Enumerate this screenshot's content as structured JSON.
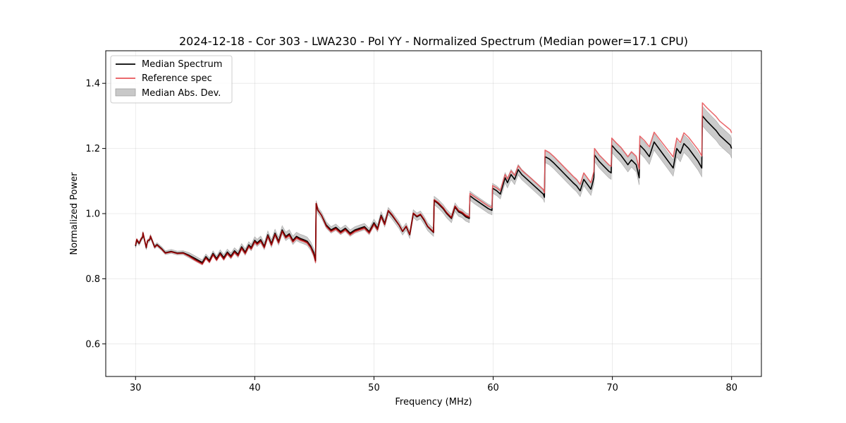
{
  "chart_data": {
    "type": "line",
    "title": "2024-12-18 - Cor 303 - LWA230 - Pol YY - Normalized Spectrum (Median power=17.1 CPU)",
    "xlabel": "Frequency (MHz)",
    "ylabel": "Normalized Power",
    "xlim": [
      27.5,
      82.5
    ],
    "ylim": [
      0.5,
      1.5
    ],
    "xticks": [
      30,
      40,
      50,
      60,
      70,
      80
    ],
    "yticks": [
      0.6,
      0.8,
      1.0,
      1.2,
      1.4
    ],
    "xtick_labels": [
      "30",
      "40",
      "50",
      "60",
      "70",
      "80"
    ],
    "ytick_labels": [
      "0.6",
      "0.8",
      "1.0",
      "1.2",
      "1.4"
    ],
    "grid": true,
    "legend_position": "top-left",
    "legend": [
      "Median Spectrum",
      "Reference spec",
      "Median Abs. Dev."
    ],
    "colors": {
      "median": "#000000",
      "reference": "#e8555a",
      "mad": "#c8c8c8",
      "overlap": "#8b0000"
    },
    "x": [
      30.0,
      30.1,
      30.3,
      30.45,
      30.6,
      30.62,
      30.9,
      31.0,
      31.2,
      31.25,
      31.6,
      31.8,
      32.2,
      32.5,
      33.0,
      33.5,
      34.0,
      34.5,
      35.0,
      35.3,
      35.6,
      35.9,
      36.2,
      36.5,
      36.8,
      37.1,
      37.4,
      37.7,
      38.0,
      38.3,
      38.6,
      38.9,
      39.2,
      39.5,
      39.7,
      40.0,
      40.2,
      40.5,
      40.8,
      41.1,
      41.4,
      41.7,
      42.0,
      42.3,
      42.6,
      42.9,
      43.2,
      43.5,
      43.8,
      44.1,
      44.4,
      44.7,
      44.95,
      45.1,
      45.15,
      45.3,
      45.6,
      46.0,
      46.4,
      46.8,
      47.2,
      47.6,
      48.0,
      48.4,
      48.8,
      49.2,
      49.6,
      50.0,
      50.3,
      50.6,
      50.9,
      51.2,
      51.5,
      51.8,
      52.1,
      52.4,
      52.7,
      53.0,
      53.3,
      53.6,
      53.9,
      54.2,
      54.5,
      55.0,
      55.05,
      55.4,
      55.8,
      56.1,
      56.5,
      56.8,
      57.1,
      57.4,
      57.7,
      58.0,
      58.05,
      58.4,
      58.8,
      59.2,
      59.6,
      59.9,
      59.95,
      60.3,
      60.6,
      61.0,
      61.2,
      61.5,
      61.8,
      62.1,
      62.4,
      62.7,
      63.0,
      63.3,
      63.6,
      63.9,
      64.2,
      64.3,
      64.35,
      64.7,
      65.1,
      65.5,
      65.9,
      66.3,
      66.7,
      67.0,
      67.3,
      67.6,
      67.9,
      68.2,
      68.45,
      68.5,
      68.9,
      69.3,
      69.7,
      69.9,
      69.95,
      70.3,
      70.7,
      71.1,
      71.3,
      71.6,
      72.0,
      72.25,
      72.3,
      72.7,
      73.1,
      73.5,
      73.9,
      74.3,
      74.7,
      75.1,
      75.4,
      75.7,
      76.0,
      76.4,
      76.8,
      77.2,
      77.5,
      77.55,
      77.9,
      78.3,
      78.7,
      79.0,
      79.3,
      79.6,
      79.9,
      80.0
    ],
    "median": [
      0.9,
      0.918,
      0.908,
      0.92,
      0.928,
      0.94,
      0.895,
      0.915,
      0.92,
      0.93,
      0.898,
      0.905,
      0.892,
      0.88,
      0.884,
      0.879,
      0.88,
      0.872,
      0.862,
      0.856,
      0.85,
      0.868,
      0.856,
      0.878,
      0.862,
      0.88,
      0.865,
      0.882,
      0.87,
      0.886,
      0.875,
      0.898,
      0.882,
      0.904,
      0.896,
      0.918,
      0.91,
      0.92,
      0.9,
      0.935,
      0.908,
      0.94,
      0.915,
      0.95,
      0.93,
      0.938,
      0.918,
      0.93,
      0.924,
      0.92,
      0.915,
      0.9,
      0.88,
      0.86,
      1.03,
      1.01,
      0.995,
      0.965,
      0.95,
      0.958,
      0.945,
      0.955,
      0.94,
      0.95,
      0.955,
      0.96,
      0.945,
      0.972,
      0.955,
      0.995,
      0.97,
      1.008,
      0.995,
      0.98,
      0.965,
      0.945,
      0.96,
      0.935,
      1.0,
      0.99,
      0.996,
      0.98,
      0.96,
      0.942,
      1.04,
      1.03,
      1.015,
      1.0,
      0.985,
      1.02,
      1.005,
      1.0,
      0.99,
      0.985,
      1.055,
      1.045,
      1.035,
      1.025,
      1.015,
      1.01,
      1.078,
      1.07,
      1.06,
      1.11,
      1.095,
      1.12,
      1.105,
      1.135,
      1.12,
      1.11,
      1.1,
      1.09,
      1.08,
      1.07,
      1.06,
      1.05,
      1.175,
      1.168,
      1.155,
      1.14,
      1.125,
      1.11,
      1.095,
      1.085,
      1.07,
      1.105,
      1.09,
      1.075,
      1.11,
      1.18,
      1.16,
      1.145,
      1.13,
      1.125,
      1.21,
      1.195,
      1.18,
      1.16,
      1.15,
      1.165,
      1.15,
      1.11,
      1.21,
      1.195,
      1.175,
      1.22,
      1.2,
      1.18,
      1.16,
      1.14,
      1.2,
      1.185,
      1.215,
      1.2,
      1.18,
      1.16,
      1.14,
      1.3,
      1.285,
      1.27,
      1.255,
      1.24,
      1.23,
      1.22,
      1.21,
      1.2
    ],
    "reference": [
      0.905,
      0.922,
      0.91,
      0.922,
      0.93,
      0.942,
      0.897,
      0.917,
      0.922,
      0.932,
      0.896,
      0.903,
      0.89,
      0.878,
      0.882,
      0.877,
      0.878,
      0.868,
      0.856,
      0.85,
      0.844,
      0.862,
      0.85,
      0.872,
      0.856,
      0.874,
      0.858,
      0.876,
      0.864,
      0.88,
      0.869,
      0.892,
      0.876,
      0.898,
      0.89,
      0.912,
      0.904,
      0.914,
      0.894,
      0.929,
      0.902,
      0.934,
      0.909,
      0.944,
      0.924,
      0.932,
      0.912,
      0.924,
      0.918,
      0.914,
      0.909,
      0.894,
      0.872,
      0.85,
      1.032,
      1.012,
      0.995,
      0.96,
      0.944,
      0.952,
      0.939,
      0.949,
      0.934,
      0.944,
      0.949,
      0.954,
      0.939,
      0.966,
      0.949,
      0.99,
      0.965,
      1.01,
      0.998,
      0.982,
      0.966,
      0.946,
      0.962,
      0.936,
      1.002,
      0.993,
      0.999,
      0.983,
      0.962,
      0.944,
      1.043,
      1.034,
      1.019,
      1.004,
      0.989,
      1.024,
      1.01,
      1.005,
      0.996,
      0.991,
      1.062,
      1.053,
      1.043,
      1.033,
      1.023,
      1.018,
      1.086,
      1.079,
      1.07,
      1.12,
      1.106,
      1.131,
      1.117,
      1.147,
      1.133,
      1.123,
      1.114,
      1.104,
      1.094,
      1.084,
      1.074,
      1.064,
      1.195,
      1.188,
      1.175,
      1.16,
      1.145,
      1.13,
      1.115,
      1.105,
      1.09,
      1.125,
      1.11,
      1.095,
      1.13,
      1.2,
      1.18,
      1.165,
      1.15,
      1.145,
      1.232,
      1.218,
      1.204,
      1.185,
      1.175,
      1.19,
      1.176,
      1.137,
      1.238,
      1.224,
      1.205,
      1.25,
      1.231,
      1.212,
      1.193,
      1.174,
      1.232,
      1.218,
      1.248,
      1.234,
      1.215,
      1.196,
      1.177,
      1.34,
      1.326,
      1.312,
      1.298,
      1.284,
      1.275,
      1.266,
      1.257,
      1.248
    ],
    "mad": [
      0.006,
      0.006,
      0.006,
      0.006,
      0.006,
      0.006,
      0.006,
      0.006,
      0.006,
      0.006,
      0.006,
      0.006,
      0.006,
      0.006,
      0.006,
      0.006,
      0.006,
      0.008,
      0.008,
      0.008,
      0.008,
      0.008,
      0.008,
      0.008,
      0.008,
      0.009,
      0.009,
      0.009,
      0.009,
      0.009,
      0.01,
      0.01,
      0.01,
      0.01,
      0.01,
      0.011,
      0.011,
      0.011,
      0.011,
      0.012,
      0.012,
      0.012,
      0.012,
      0.013,
      0.013,
      0.013,
      0.013,
      0.013,
      0.013,
      0.013,
      0.013,
      0.013,
      0.013,
      0.013,
      0.01,
      0.01,
      0.01,
      0.01,
      0.01,
      0.01,
      0.01,
      0.01,
      0.01,
      0.01,
      0.01,
      0.01,
      0.01,
      0.011,
      0.011,
      0.011,
      0.011,
      0.011,
      0.011,
      0.011,
      0.011,
      0.011,
      0.011,
      0.011,
      0.012,
      0.012,
      0.012,
      0.012,
      0.012,
      0.012,
      0.013,
      0.013,
      0.013,
      0.013,
      0.013,
      0.013,
      0.013,
      0.013,
      0.013,
      0.013,
      0.014,
      0.014,
      0.014,
      0.014,
      0.014,
      0.014,
      0.015,
      0.015,
      0.015,
      0.016,
      0.016,
      0.016,
      0.016,
      0.016,
      0.016,
      0.016,
      0.016,
      0.016,
      0.016,
      0.016,
      0.016,
      0.016,
      0.018,
      0.018,
      0.018,
      0.018,
      0.018,
      0.018,
      0.018,
      0.018,
      0.018,
      0.019,
      0.019,
      0.019,
      0.019,
      0.02,
      0.02,
      0.02,
      0.02,
      0.02,
      0.022,
      0.022,
      0.022,
      0.022,
      0.022,
      0.022,
      0.022,
      0.022,
      0.024,
      0.024,
      0.024,
      0.025,
      0.025,
      0.025,
      0.025,
      0.025,
      0.026,
      0.026,
      0.027,
      0.027,
      0.027,
      0.027,
      0.027,
      0.03,
      0.03,
      0.03,
      0.03,
      0.03,
      0.03,
      0.03,
      0.03,
      0.03
    ]
  }
}
